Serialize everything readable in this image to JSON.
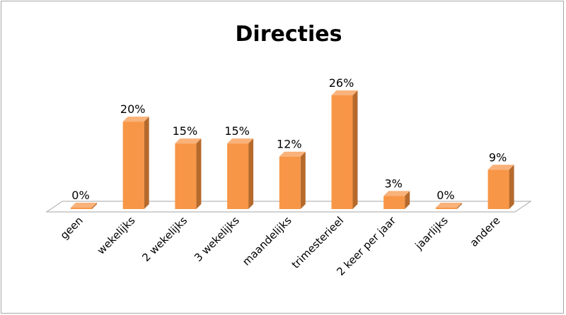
{
  "chart_data": {
    "type": "bar",
    "title": "Directies",
    "categories": [
      "geen",
      "wekelijks",
      "2 wekelijks",
      "3 wekelijks",
      "maandelijks",
      "trimesterieel",
      "2 keer per jaar",
      "jaarlijks",
      "andere"
    ],
    "values": [
      0,
      20,
      15,
      15,
      12,
      26,
      3,
      0,
      9
    ],
    "data_labels": [
      "0%",
      "20%",
      "15%",
      "15%",
      "12%",
      "26%",
      "3%",
      "0%",
      "9%"
    ],
    "value_unit": "%",
    "ylim": [
      0,
      26
    ],
    "grid": false,
    "legend": "none",
    "colors": {
      "front": "#f79646",
      "side": "#b56a2c",
      "top": "#f9b27a",
      "floor_stroke": "#a6a6a6"
    }
  }
}
